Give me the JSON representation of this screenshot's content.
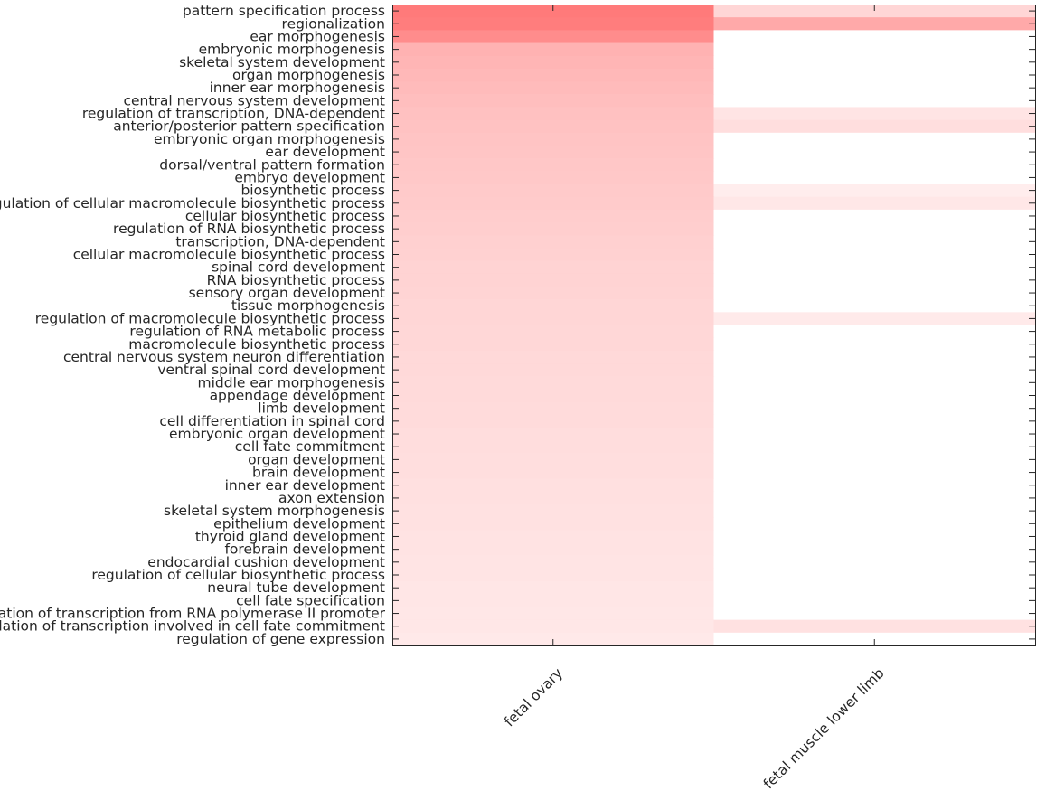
{
  "chart_data": {
    "type": "heatmap",
    "title": "",
    "xlabel": "",
    "ylabel": "",
    "columns": [
      "fetal ovary",
      "fetal muscle lower limb"
    ],
    "rows": [
      "pattern specification process",
      "regionalization",
      "ear morphogenesis",
      "embryonic morphogenesis",
      "skeletal system development",
      "organ morphogenesis",
      "inner ear morphogenesis",
      "central nervous system development",
      "regulation of transcription, DNA-dependent",
      "anterior/posterior pattern specification",
      "embryonic organ morphogenesis",
      "ear development",
      "dorsal/ventral pattern formation",
      "embryo development",
      "biosynthetic process",
      "regulation of cellular macromolecule biosynthetic process",
      "cellular biosynthetic process",
      "regulation of RNA biosynthetic process",
      "transcription, DNA-dependent",
      "cellular macromolecule biosynthetic process",
      "spinal cord development",
      "RNA biosynthetic process",
      "sensory organ development",
      "tissue morphogenesis",
      "regulation of macromolecule biosynthetic process",
      "regulation of RNA metabolic process",
      "macromolecule biosynthetic process",
      "central nervous system neuron differentiation",
      "ventral spinal cord development",
      "middle ear morphogenesis",
      "appendage development",
      "limb development",
      "cell differentiation in spinal cord",
      "embryonic organ development",
      "cell fate commitment",
      "organ development",
      "brain development",
      "inner ear development",
      "axon extension",
      "skeletal system morphogenesis",
      "epithelium development",
      "thyroid gland development",
      "forebrain development",
      "endocardial cushion development",
      "regulation of cellular biosynthetic process",
      "neural tube development",
      "cell fate specification",
      "regulation of transcription from RNA polymerase II promoter",
      "regulation of transcription involved in cell fate commitment",
      "regulation of gene expression"
    ],
    "values": [
      [
        0.9,
        0.28
      ],
      [
        0.88,
        0.58
      ],
      [
        0.78,
        0.0
      ],
      [
        0.52,
        0.0
      ],
      [
        0.5,
        0.0
      ],
      [
        0.48,
        0.0
      ],
      [
        0.46,
        0.0
      ],
      [
        0.44,
        0.0
      ],
      [
        0.42,
        0.18
      ],
      [
        0.41,
        0.22
      ],
      [
        0.4,
        0.0
      ],
      [
        0.39,
        0.0
      ],
      [
        0.38,
        0.0
      ],
      [
        0.37,
        0.0
      ],
      [
        0.36,
        0.12
      ],
      [
        0.35,
        0.16
      ],
      [
        0.34,
        0.0
      ],
      [
        0.33,
        0.0
      ],
      [
        0.32,
        0.0
      ],
      [
        0.31,
        0.0
      ],
      [
        0.3,
        0.0
      ],
      [
        0.3,
        0.0
      ],
      [
        0.29,
        0.0
      ],
      [
        0.28,
        0.0
      ],
      [
        0.28,
        0.14
      ],
      [
        0.27,
        0.0
      ],
      [
        0.27,
        0.0
      ],
      [
        0.26,
        0.0
      ],
      [
        0.26,
        0.0
      ],
      [
        0.25,
        0.0
      ],
      [
        0.25,
        0.0
      ],
      [
        0.24,
        0.0
      ],
      [
        0.24,
        0.0
      ],
      [
        0.23,
        0.0
      ],
      [
        0.23,
        0.0
      ],
      [
        0.22,
        0.0
      ],
      [
        0.22,
        0.0
      ],
      [
        0.21,
        0.0
      ],
      [
        0.21,
        0.0
      ],
      [
        0.2,
        0.0
      ],
      [
        0.2,
        0.0
      ],
      [
        0.19,
        0.0
      ],
      [
        0.19,
        0.0
      ],
      [
        0.18,
        0.0
      ],
      [
        0.18,
        0.0
      ],
      [
        0.17,
        0.0
      ],
      [
        0.17,
        0.0
      ],
      [
        0.16,
        0.0
      ],
      [
        0.16,
        0.2
      ],
      [
        0.15,
        0.0
      ]
    ],
    "colormap": {
      "low": "#ffffff",
      "high": "#ff6b6b"
    },
    "grid": false,
    "legend": "none"
  }
}
